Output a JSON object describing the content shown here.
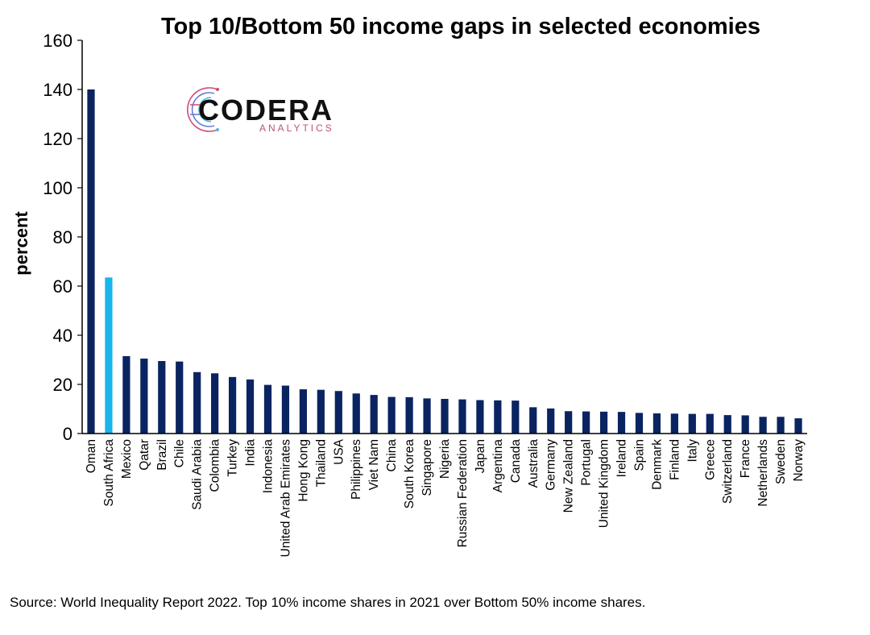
{
  "chart_data": {
    "type": "bar",
    "title": "Top 10/Bottom 50 income gaps in selected economies",
    "ylabel": "percent",
    "xlabel": "",
    "ylim": [
      0,
      160
    ],
    "yticks": [
      0,
      20,
      40,
      60,
      80,
      100,
      120,
      140,
      160
    ],
    "grid": false,
    "categories": [
      "Oman",
      "South Africa",
      "Mexico",
      "Qatar",
      "Brazil",
      "Chile",
      "Saudi Arabia",
      "Colombia",
      "Turkey",
      "India",
      "Indonesia",
      "United Arab Emirates",
      "Hong Kong",
      "Thailand",
      "USA",
      "Philippines",
      "Viet Nam",
      "China",
      "South Korea",
      "Singapore",
      "Nigeria",
      "Russian Federation",
      "Japan",
      "Argentina",
      "Canada",
      "Australia",
      "Germany",
      "New Zealand",
      "Portugal",
      "United Kingdom",
      "Ireland",
      "Spain",
      "Denmark",
      "Finland",
      "Italy",
      "Greece",
      "Switzerland",
      "France",
      "Netherlands",
      "Sweden",
      "Norway"
    ],
    "values": [
      140,
      63.5,
      31.5,
      30.5,
      29.5,
      29.3,
      25,
      24.5,
      23,
      22,
      19.8,
      19.5,
      18,
      17.8,
      17.3,
      16.3,
      15.7,
      14.9,
      14.8,
      14.3,
      14.1,
      13.9,
      13.6,
      13.5,
      13.4,
      10.7,
      10.2,
      9.1,
      9.0,
      8.9,
      8.8,
      8.4,
      8.2,
      8.1,
      8.0,
      8.0,
      7.5,
      7.4,
      6.8,
      6.8,
      6.2
    ],
    "highlight_category": "South Africa",
    "colors": {
      "default_bar": "#0a2461",
      "highlight_bar": "#18b4ec",
      "axis": "#000000"
    }
  },
  "logo": {
    "main": "CODERA",
    "sub": "ANALYTICS",
    "icon": "circuit-c-icon"
  },
  "source": "Source: World Inequality Report 2022. Top 10% income shares in 2021 over Bottom 50% income shares."
}
